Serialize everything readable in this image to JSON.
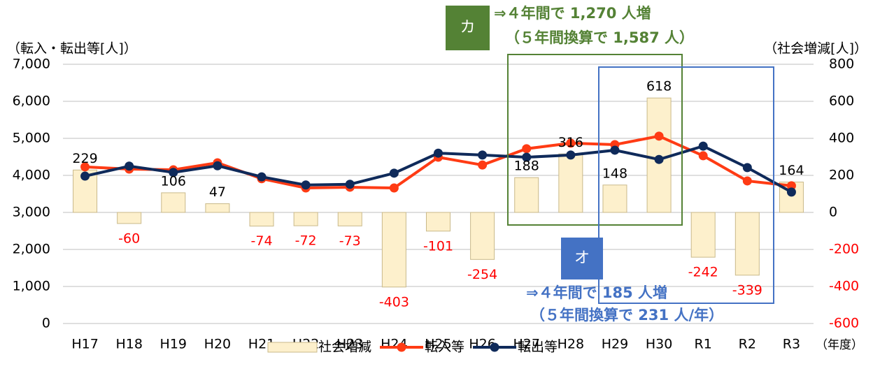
{
  "chart_data": {
    "type": "bar_line",
    "y_label": "（転入・転出等[人]）",
    "y2_label": "（社会増減[人]）",
    "x_unit": "（年度）",
    "categories": [
      "H17",
      "H18",
      "H19",
      "H20",
      "H21",
      "H22",
      "H23",
      "H24",
      "H25",
      "H26",
      "H27",
      "H28",
      "H29",
      "H30",
      "R1",
      "R2",
      "R3"
    ],
    "series": [
      {
        "name": "社会増減",
        "type": "bar",
        "axis": "y2",
        "color": "#fdf0cc",
        "edge_color": "#c9b98a",
        "values": [
          229,
          -60,
          106,
          47,
          -74,
          -72,
          -73,
          -403,
          -101,
          -254,
          188,
          316,
          148,
          618,
          -242,
          -339,
          164
        ]
      },
      {
        "name": "転入等",
        "type": "line",
        "axis": "y",
        "color": "#ff3b14",
        "values": [
          4230,
          4170,
          4150,
          4340,
          3910,
          3660,
          3680,
          3660,
          4490,
          4280,
          4720,
          4870,
          4830,
          5060,
          4530,
          3850,
          3720
        ]
      },
      {
        "name": "転出等",
        "type": "line",
        "axis": "y",
        "color": "#0f2a5a",
        "values": [
          3980,
          4250,
          4080,
          4260,
          3960,
          3740,
          3760,
          4060,
          4600,
          4550,
          4490,
          4550,
          4680,
          4430,
          4790,
          4210,
          3550
        ]
      }
    ],
    "negative_color": "#ff0000",
    "ylim": [
      0,
      7000
    ],
    "yticks": [
      0,
      {
        "value": 1000,
        "label": "1,000"
      },
      {
        "value": 2000,
        "label": "2,000"
      },
      {
        "value": 3000,
        "label": "3,000"
      },
      {
        "value": 4000,
        "label": "4,000"
      },
      {
        "value": 5000,
        "label": "5,000"
      },
      {
        "value": 6000,
        "label": "6,000"
      },
      {
        "value": 7000,
        "label": "7,000"
      }
    ],
    "y2lim": [
      -600,
      800
    ],
    "y2ticks": [
      -600,
      -400,
      -200,
      0,
      200,
      400,
      600,
      800
    ],
    "grid": true,
    "legend": "bottom",
    "annotations": [
      {
        "badge": "カ",
        "color": "#548235",
        "lines": [
          "⇒４年間で 1,270 人増",
          "（５年間換算で 1,587 人）"
        ]
      },
      {
        "badge": "オ",
        "color": "#4472c4",
        "lines": [
          "⇒４年間で 185 人増",
          "（５年間換算で 231 人/年）"
        ]
      }
    ]
  }
}
